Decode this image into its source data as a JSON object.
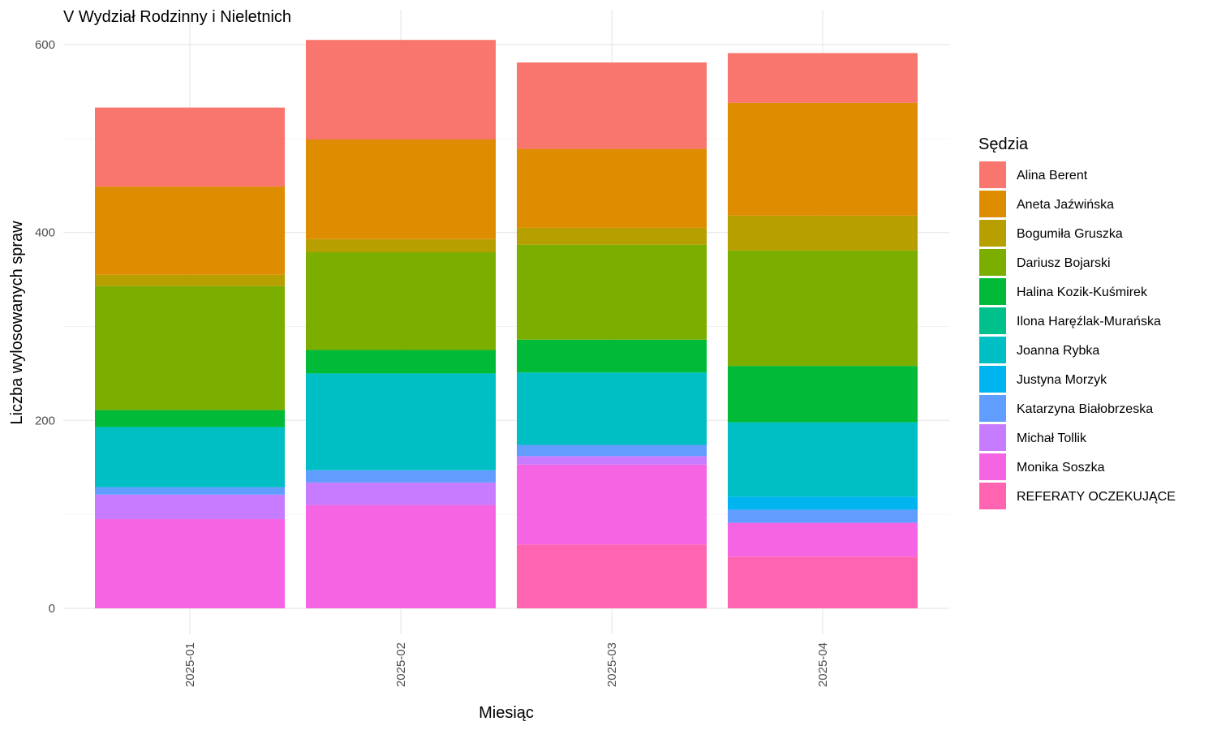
{
  "chart_data": {
    "type": "bar",
    "stacked": true,
    "title": "V Wydział Rodzinny i Nieletnich",
    "xlabel": "Miesiąc",
    "ylabel": "Liczba wylosowanych spraw",
    "categories": [
      "2025-01",
      "2025-02",
      "2025-03",
      "2025-04"
    ],
    "ylim": [
      0,
      620
    ],
    "yticks": [
      0,
      200,
      400,
      600
    ],
    "grid": true,
    "legend": {
      "title": "Sędzia",
      "position": "right"
    },
    "series": [
      {
        "name": "Alina Berent",
        "color": "#F8766D",
        "values": [
          84,
          106,
          92,
          53
        ]
      },
      {
        "name": "Aneta Jaźwińska",
        "color": "#DE8C00",
        "values": [
          94,
          106,
          84,
          120
        ]
      },
      {
        "name": "Bogumiła Gruszka",
        "color": "#B79F00",
        "values": [
          12,
          14,
          18,
          37
        ]
      },
      {
        "name": "Dariusz Bojarski",
        "color": "#7CAE00",
        "values": [
          132,
          104,
          101,
          123
        ]
      },
      {
        "name": "Halina Kozik-Kuśmirek",
        "color": "#00BA38",
        "values": [
          18,
          25,
          35,
          60
        ]
      },
      {
        "name": "Ilona Haręźlak-Murańska",
        "color": "#00C08B",
        "values": [
          0,
          0,
          0,
          0
        ]
      },
      {
        "name": "Joanna Rybka",
        "color": "#00BFC4",
        "values": [
          64,
          103,
          77,
          79
        ]
      },
      {
        "name": "Justyna Morzyk",
        "color": "#00B4F0",
        "values": [
          0,
          0,
          0,
          14
        ]
      },
      {
        "name": "Katarzyna Białobrzeska",
        "color": "#619CFF",
        "values": [
          8,
          13,
          12,
          14
        ]
      },
      {
        "name": "Michał Tollik",
        "color": "#C77CFF",
        "values": [
          26,
          24,
          9,
          0
        ]
      },
      {
        "name": "Monika Soszka",
        "color": "#F564E3",
        "values": [
          95,
          110,
          85,
          36
        ]
      },
      {
        "name": "REFERATY OCZEKUJĄCE",
        "color": "#FF64B0",
        "values": [
          0,
          0,
          68,
          55
        ]
      }
    ]
  }
}
